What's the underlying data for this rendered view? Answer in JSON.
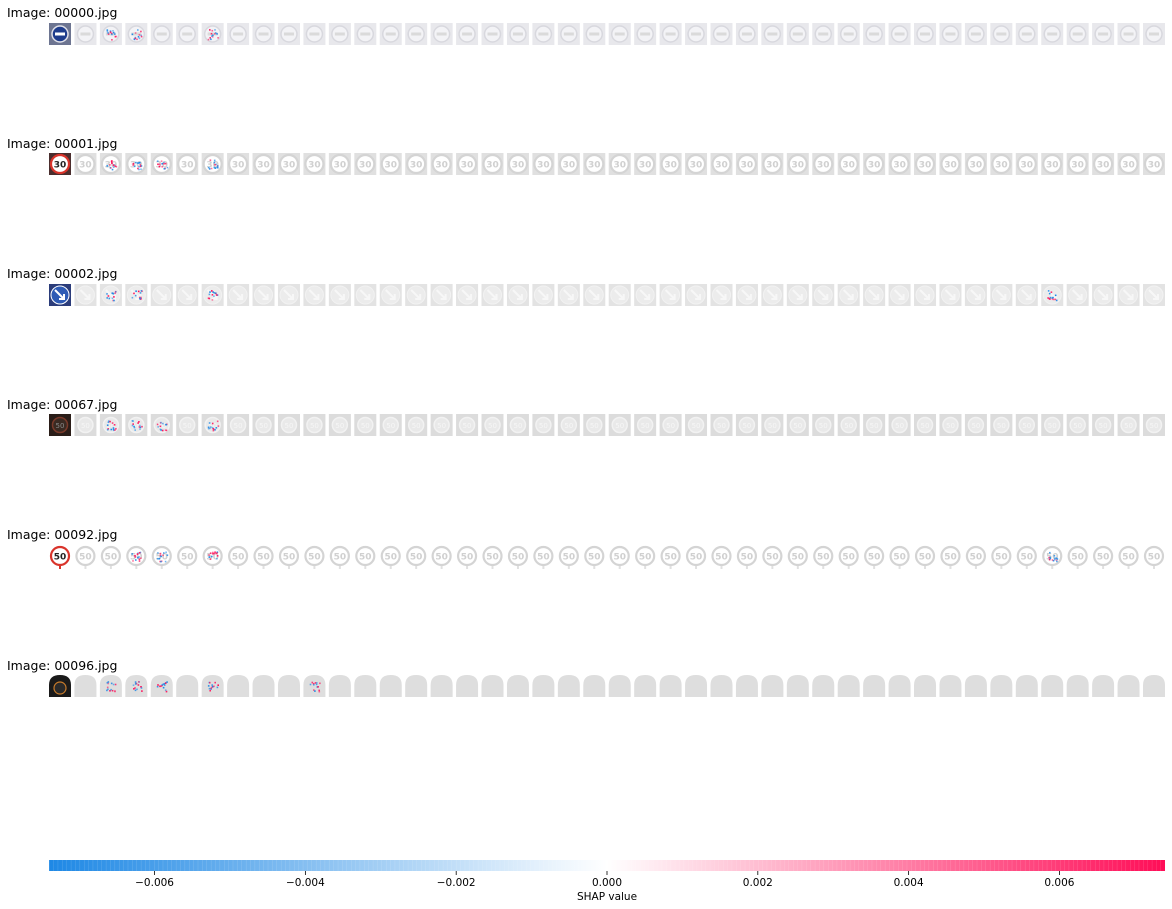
{
  "chart_data": {
    "type": "heatmap",
    "description_kind": "SHAP image explanation grid",
    "rows": [
      {
        "label": "Image: 00000.jpg",
        "sign": "blue_circle",
        "highlights": [
          2,
          3,
          6
        ]
      },
      {
        "label": "Image: 00001.jpg",
        "sign": "speed30",
        "highlights": [
          2,
          3,
          4,
          6
        ]
      },
      {
        "label": "Image: 00002.jpg",
        "sign": "blue_arrow",
        "highlights": [
          2,
          3,
          6,
          39
        ]
      },
      {
        "label": "Image: 00067.jpg",
        "sign": "dark_circle",
        "highlights": [
          2,
          3,
          4,
          6
        ]
      },
      {
        "label": "Image: 00092.jpg",
        "sign": "speed50",
        "highlights": [
          3,
          4,
          6,
          39
        ]
      },
      {
        "label": "Image: 00096.jpg",
        "sign": "dark_dome",
        "highlights": [
          2,
          3,
          4,
          6,
          10
        ]
      }
    ],
    "columns_per_row": 44,
    "colorbar": {
      "label": "SHAP value",
      "min": -0.0074,
      "max": 0.0074,
      "ticks": [
        -0.006,
        -0.004,
        -0.002,
        0.0,
        0.002,
        0.004,
        0.006
      ],
      "tick_labels": [
        "−0.006",
        "−0.004",
        "−0.002",
        "0.000",
        "0.002",
        "0.004",
        "0.006"
      ],
      "negative_color": "#1e88e5",
      "positive_color": "#ff0d57"
    }
  }
}
